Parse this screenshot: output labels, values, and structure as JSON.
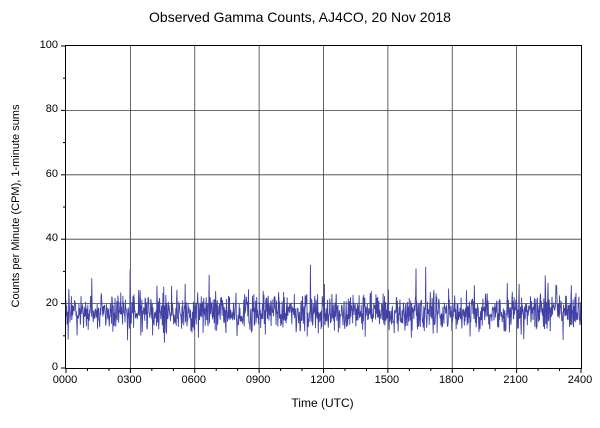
{
  "chart_data": {
    "type": "line",
    "title": "Observed Gamma Counts, AJ4CO, 20 Nov 2018",
    "xlabel": "Time (UTC)",
    "ylabel": "Counts per Minute (CPM), 1-minute sums",
    "xlim_minutes": [
      0,
      1440
    ],
    "ylim": [
      0,
      100
    ],
    "x_tick_labels": [
      "0000",
      "0300",
      "0600",
      "0900",
      "1200",
      "1500",
      "1800",
      "2100",
      "2400"
    ],
    "x_tick_positions_min": [
      0,
      180,
      360,
      540,
      720,
      900,
      1080,
      1260,
      1440
    ],
    "y_tick_labels": [
      "0",
      "20",
      "40",
      "60",
      "80",
      "100"
    ],
    "y_tick_values": [
      0,
      20,
      40,
      60,
      80,
      100
    ],
    "grid": true,
    "legend": "none",
    "minor_ticks": {
      "x_every_min": 60,
      "y_every": 10
    },
    "series": [
      {
        "name": "Observed gamma counts",
        "units": "CPM",
        "sampling": "1-minute sums",
        "color": "#4242a6",
        "n_points": 1440,
        "approx_mean": 17.3,
        "approx_sd": 3.1,
        "observed_range": [
          8,
          33
        ],
        "generator": {
          "seed": 20181120,
          "spike_prob": 0.012,
          "spike_add": [
            5,
            13
          ],
          "floor": 7.5,
          "ceil": 33.5
        }
      }
    ],
    "styles": {
      "background": "#ffffff",
      "axis_color": "#000000",
      "grid_color": "#3c3c3c",
      "text_color": "#000000"
    }
  }
}
